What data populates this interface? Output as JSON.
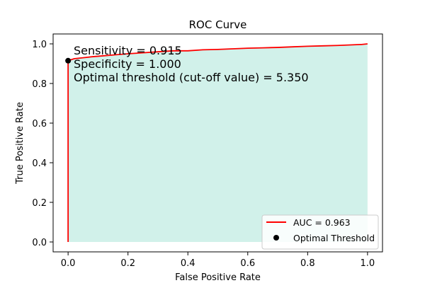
{
  "chart_data": {
    "type": "line",
    "title": "ROC Curve",
    "xlabel": "False Positive Rate",
    "ylabel": "True Positive Rate",
    "xlim": [
      -0.05,
      1.05
    ],
    "ylim": [
      -0.05,
      1.05
    ],
    "xticks": [
      "0.0",
      "0.2",
      "0.4",
      "0.6",
      "0.8",
      "1.0"
    ],
    "yticks": [
      "0.0",
      "0.2",
      "0.4",
      "0.6",
      "0.8",
      "1.0"
    ],
    "grid": false,
    "legend_position": "bottom-right",
    "series": [
      {
        "name": "AUC = 0.963",
        "color": "#ff0000",
        "fill_color": "#d1f1ea",
        "x": [
          0.0,
          0.0,
          0.0,
          0.02,
          0.05,
          0.08,
          0.12,
          0.16,
          0.2,
          0.25,
          0.3,
          0.35,
          0.4,
          0.45,
          0.5,
          0.55,
          0.6,
          0.65,
          0.7,
          0.75,
          0.8,
          0.85,
          0.9,
          0.95,
          0.98,
          1.0
        ],
        "y": [
          0.0,
          0.915,
          0.915,
          0.925,
          0.93,
          0.935,
          0.94,
          0.945,
          0.95,
          0.955,
          0.96,
          0.965,
          0.965,
          0.97,
          0.972,
          0.975,
          0.978,
          0.98,
          0.982,
          0.985,
          0.988,
          0.99,
          0.992,
          0.995,
          0.997,
          1.0
        ]
      }
    ],
    "optimal_point": {
      "name": "Optimal Threshold",
      "x": 0.0,
      "y": 0.915,
      "color": "#000000"
    },
    "annotations": [
      "Sensitivity = 0.915",
      "Specificity = 1.000",
      "Optimal threshold (cut-off value) = 5.350"
    ]
  }
}
